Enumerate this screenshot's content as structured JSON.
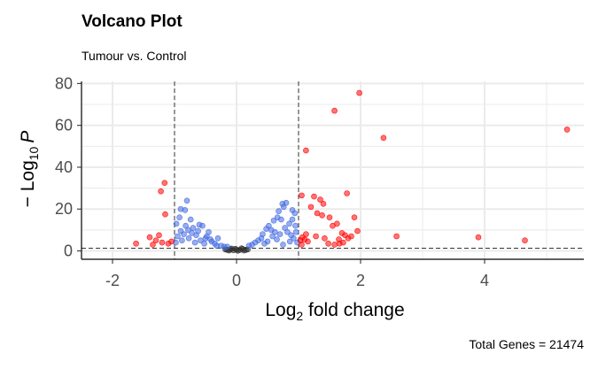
{
  "chart_data": {
    "type": "scatter",
    "title": "Volcano Plot",
    "subtitle": "Tumour vs. Control",
    "xlabel_base": "Log",
    "xlabel_sub": "2",
    "xlabel_rest": " fold change",
    "ylabel_pre": "− Log",
    "ylabel_sub": "10",
    "ylabel_p": "P",
    "caption": "Total Genes = 21474",
    "xlim": [
      -2.5,
      5.6
    ],
    "ylim": [
      -4,
      81
    ],
    "x_ticks": [
      -2,
      0,
      2,
      4
    ],
    "y_ticks": [
      0,
      20,
      40,
      60,
      80
    ],
    "x_tick_labels": [
      "-2",
      "0",
      "2",
      "4"
    ],
    "y_tick_labels": [
      "0",
      "20",
      "40",
      "60",
      "80"
    ],
    "fc_cutoffs": [
      -1,
      1
    ],
    "p_cutoff_line": 1.3,
    "grid": true,
    "legend": "none",
    "colors": {
      "significant": "#ff0000",
      "p_only": "#4169e1",
      "not_significant": "#2f2f2f",
      "cutoff_line": "#333333",
      "grid": "#ebebeb"
    },
    "series": [
      {
        "color_key": "significant",
        "points": [
          [
            5.33,
            58
          ],
          [
            1.98,
            75.5
          ],
          [
            1.58,
            67
          ],
          [
            2.37,
            54
          ],
          [
            1.12,
            48
          ],
          [
            1.78,
            27.5
          ],
          [
            1.05,
            26.5
          ],
          [
            1.25,
            26
          ],
          [
            1.35,
            24.5
          ],
          [
            1.4,
            22.5
          ],
          [
            1.2,
            21
          ],
          [
            1.3,
            18
          ],
          [
            1.38,
            17
          ],
          [
            1.5,
            16
          ],
          [
            1.62,
            13
          ],
          [
            1.9,
            16
          ],
          [
            1.55,
            12
          ],
          [
            1.7,
            8.5
          ],
          [
            1.75,
            7.5
          ],
          [
            1.85,
            7
          ],
          [
            1.95,
            9.5
          ],
          [
            1.65,
            5.5
          ],
          [
            1.72,
            4
          ],
          [
            1.58,
            3
          ],
          [
            1.66,
            3.5
          ],
          [
            2.58,
            7
          ],
          [
            3.9,
            6.5
          ],
          [
            4.65,
            5
          ],
          [
            1.12,
            8
          ],
          [
            1.1,
            5.5
          ],
          [
            1.05,
            3
          ],
          [
            1.03,
            5
          ],
          [
            1.15,
            4.5
          ],
          [
            1.28,
            7
          ],
          [
            1.42,
            6
          ],
          [
            1.48,
            3.5
          ],
          [
            1.8,
            6
          ],
          [
            1.06,
            6.5
          ],
          [
            -1.16,
            32.5
          ],
          [
            -1.22,
            28.5
          ],
          [
            -1.15,
            17.5
          ],
          [
            -1.62,
            3.5
          ],
          [
            -1.4,
            6.5
          ],
          [
            -1.3,
            5
          ],
          [
            -1.25,
            7.5
          ],
          [
            -1.2,
            4
          ],
          [
            -1.1,
            3.5
          ],
          [
            -1.05,
            4.5
          ],
          [
            -1.35,
            3
          ]
        ]
      },
      {
        "color_key": "p_only",
        "points": [
          [
            -0.8,
            24
          ],
          [
            -0.9,
            20
          ],
          [
            -0.83,
            19.5
          ],
          [
            -0.74,
            15
          ],
          [
            -0.6,
            12.5
          ],
          [
            -0.55,
            12
          ],
          [
            -0.7,
            11
          ],
          [
            -0.45,
            9
          ],
          [
            -0.3,
            6
          ],
          [
            -0.9,
            9.5
          ],
          [
            -0.95,
            7
          ],
          [
            -0.85,
            8
          ],
          [
            -0.65,
            7.5
          ],
          [
            -0.5,
            6
          ],
          [
            -0.4,
            4.5
          ],
          [
            -0.35,
            3.5
          ],
          [
            -0.25,
            2.5
          ],
          [
            -0.2,
            2
          ],
          [
            -0.78,
            10
          ],
          [
            -0.72,
            8.5
          ],
          [
            -0.62,
            9.5
          ],
          [
            -0.58,
            5
          ],
          [
            -0.48,
            7
          ],
          [
            -0.42,
            5.5
          ],
          [
            -0.88,
            5
          ],
          [
            -0.98,
            4
          ],
          [
            -0.67,
            4
          ],
          [
            -0.52,
            3.5
          ],
          [
            -0.32,
            2.5
          ],
          [
            -0.15,
            2
          ],
          [
            -0.97,
            13
          ],
          [
            -0.92,
            16
          ],
          [
            -0.82,
            12
          ],
          [
            -0.77,
            6
          ],
          [
            0.74,
            22.5
          ],
          [
            0.8,
            23
          ],
          [
            0.76,
            21
          ],
          [
            0.68,
            19
          ],
          [
            0.66,
            16
          ],
          [
            0.72,
            15
          ],
          [
            0.6,
            14.5
          ],
          [
            0.52,
            12
          ],
          [
            0.48,
            10.5
          ],
          [
            0.56,
            10
          ],
          [
            0.62,
            9
          ],
          [
            0.7,
            8
          ],
          [
            0.78,
            11
          ],
          [
            0.82,
            9
          ],
          [
            0.88,
            7.5
          ],
          [
            0.92,
            6
          ],
          [
            0.85,
            13
          ],
          [
            0.9,
            15
          ],
          [
            0.95,
            12
          ],
          [
            0.42,
            8
          ],
          [
            0.4,
            6
          ],
          [
            0.35,
            5
          ],
          [
            0.3,
            4
          ],
          [
            0.25,
            3
          ],
          [
            0.2,
            2.5
          ],
          [
            0.65,
            5.5
          ],
          [
            0.58,
            7
          ],
          [
            0.5,
            4.5
          ],
          [
            0.45,
            3.5
          ],
          [
            0.96,
            9
          ],
          [
            0.98,
            4
          ],
          [
            0.86,
            4.5
          ],
          [
            0.75,
            3
          ],
          [
            0.94,
            18
          ],
          [
            0.9,
            19.5
          ]
        ]
      },
      {
        "color_key": "not_significant",
        "points": [
          [
            -0.15,
            0.5
          ],
          [
            -0.1,
            0.8
          ],
          [
            -0.05,
            0.3
          ],
          [
            0,
            0.6
          ],
          [
            0.05,
            0.4
          ],
          [
            0.1,
            0.9
          ],
          [
            0.15,
            0.5
          ],
          [
            -0.08,
            1.1
          ],
          [
            0.08,
            1.2
          ],
          [
            -0.12,
            0.2
          ],
          [
            0.12,
            0.2
          ],
          [
            0.02,
            0.1
          ],
          [
            -0.02,
            1
          ],
          [
            0.18,
            0.7
          ],
          [
            -0.18,
            0.7
          ]
        ]
      }
    ]
  }
}
